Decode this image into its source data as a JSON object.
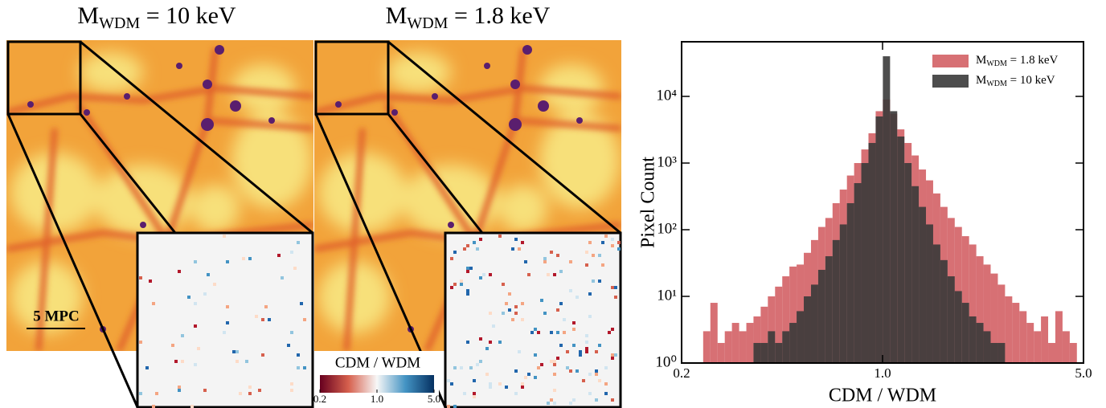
{
  "panels": [
    {
      "title": [
        "M",
        "WDM",
        " = 10 keV"
      ]
    },
    {
      "title": [
        "M",
        "WDM",
        " = 1.8 keV"
      ]
    }
  ],
  "scale_bar": "5 MPC",
  "colorbar": {
    "label": "CDM / WDM",
    "lim": [
      0.2,
      5
    ],
    "ticks": [
      0.2,
      {
        "value": 1,
        "label": "1.0"
      },
      {
        "value": 5,
        "label": "5.0"
      }
    ]
  },
  "chart_data": {
    "type": "histogram",
    "xlabel": "CDM / WDM",
    "ylabel": "Pixel Count",
    "xscale": "log",
    "yscale": "log",
    "xlim": [
      0.2,
      5
    ],
    "ylim": [
      1,
      66000
    ],
    "xticks": [
      0.2,
      {
        "value": 1,
        "label": "1.0"
      },
      {
        "value": 5,
        "label": "5.0"
      }
    ],
    "yticks": [
      {
        "value": 1,
        "label": "10⁰"
      },
      {
        "value": 10,
        "label": "10¹"
      },
      {
        "value": 100,
        "label": "10²"
      },
      {
        "value": 1000,
        "label": "10³"
      },
      {
        "value": 10000,
        "label": "10⁴"
      }
    ],
    "legend": "upper right",
    "bins": [
      0.2,
      0.2119,
      0.2244,
      0.2377,
      0.2518,
      0.2668,
      0.2826,
      0.2993,
      0.3171,
      0.3359,
      0.3557,
      0.3768,
      0.3991,
      0.4228,
      0.4479,
      0.4743,
      0.5024,
      0.5322,
      0.5638,
      0.5972,
      0.6325,
      0.67,
      0.7097,
      0.7518,
      0.7964,
      0.8434,
      0.8934,
      0.9464,
      1.0025,
      1.062,
      1.1247,
      1.1914,
      1.262,
      1.3368,
      1.416,
      1.4998,
      1.5887,
      1.6829,
      1.7827,
      1.8884,
      2.0,
      2.1186,
      2.2442,
      2.3773,
      2.5183,
      2.6672,
      2.8255,
      2.993,
      3.1705,
      3.3585,
      3.5566,
      3.7675,
      3.9909,
      4.2275,
      4.4783,
      4.7427
    ],
    "series": [
      {
        "name": [
          "M",
          "WDM",
          " = 1.8 keV"
        ],
        "color": "#d0575c",
        "opacity": 0.85,
        "values": [
          0,
          0,
          0,
          3,
          8,
          2,
          3,
          4,
          3,
          4,
          5,
          7,
          10,
          14,
          20,
          28,
          30,
          45,
          70,
          110,
          150,
          250,
          400,
          650,
          1000,
          1600,
          2800,
          6000,
          9000,
          5500,
          3200,
          2000,
          1300,
          800,
          550,
          350,
          220,
          150,
          110,
          80,
          60,
          40,
          30,
          22,
          15,
          10,
          8,
          6,
          4,
          3,
          5,
          2,
          6,
          3,
          2
        ]
      },
      {
        "name": [
          "M",
          "WDM",
          " = 10 keV"
        ],
        "color": "#3a3a3a",
        "opacity": 0.9,
        "values": [
          0,
          0,
          0,
          0,
          0,
          0,
          0,
          0,
          0,
          0,
          2,
          2,
          3,
          2,
          3,
          4,
          6,
          10,
          15,
          25,
          40,
          70,
          120,
          250,
          500,
          1000,
          2000,
          5000,
          40000,
          6000,
          2500,
          1000,
          450,
          220,
          120,
          60,
          35,
          20,
          12,
          8,
          5,
          4,
          3,
          2,
          2,
          1,
          0,
          0,
          0,
          0,
          0,
          0,
          0,
          0,
          0
        ]
      }
    ]
  }
}
